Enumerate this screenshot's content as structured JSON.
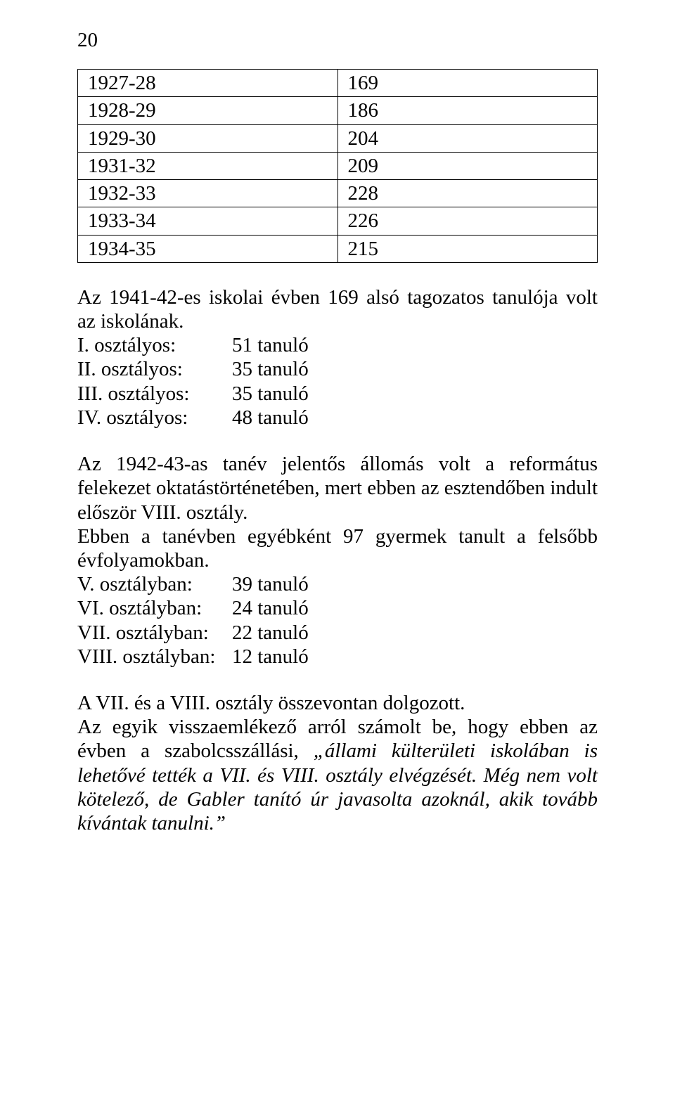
{
  "page_number": "20",
  "table": {
    "rows": [
      [
        "1927-28",
        "169"
      ],
      [
        "1928-29",
        "186"
      ],
      [
        "1929-30",
        "204"
      ],
      [
        "1931-32",
        "209"
      ],
      [
        "1932-33",
        "228"
      ],
      [
        "1933-34",
        "226"
      ],
      [
        "1934-35",
        "215"
      ]
    ]
  },
  "para1": "Az 1941-42-es iskolai évben 169 alsó tagozatos tanulója volt az iskolának.",
  "class_list1": [
    {
      "label": "I. osztályos:",
      "value": "51 tanuló"
    },
    {
      "label": "II. osztályos:",
      "value": "35  tanuló"
    },
    {
      "label": "III. osztályos:",
      "value": "35 tanuló"
    },
    {
      "label": "IV. osztályos:",
      "value": "48 tanuló"
    }
  ],
  "para2": "Az 1942-43-as tanév jelentős állomás volt a református felekezet oktatástörténetében, mert ebben az esztendőben indult először VIII. osztály.",
  "para3": "Ebben a tanévben egyébként 97 gyermek tanult a felsőbb évfolyamokban.",
  "class_list2": [
    {
      "label": "V. osztályban:",
      "value": "39 tanuló"
    },
    {
      "label": "VI. osztályban:",
      "value": "24 tanuló"
    },
    {
      "label": "VII. osztályban:",
      "value": "22 tanuló"
    },
    {
      "label": "VIII. osztályban:",
      "value": "12 tanuló"
    }
  ],
  "para4": "A VII. és a VIII. osztály összevontan dolgozott.",
  "para5_a": "Az egyik visszaemlékező arról számolt be, hogy ebben az évben a szabolcsszállási, ",
  "para5_b": "„állami külterületi iskolában is lehetővé tették a VII. és VIII. osztály elvégzését. Még nem volt kötelező, de Gabler tanító úr javasolta azoknál, akik tovább kívántak tanulni.”"
}
